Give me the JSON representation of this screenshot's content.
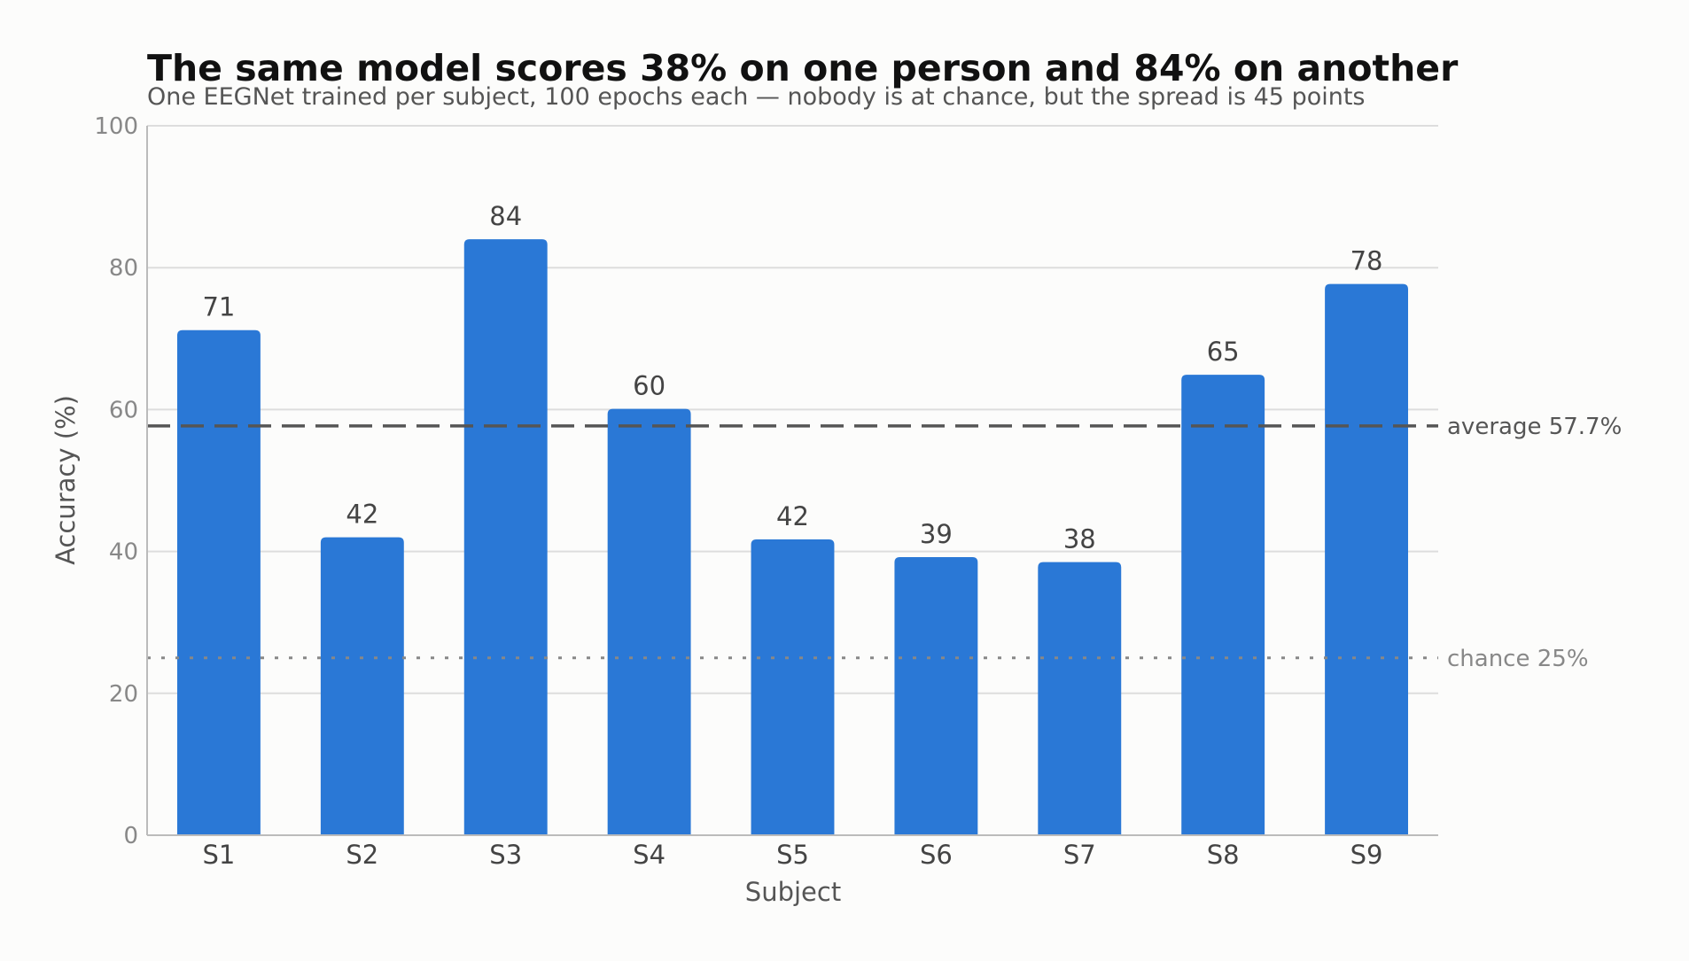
{
  "chart_data": {
    "type": "bar",
    "title": "The same model scores 38% on one person and 84% on another",
    "subtitle": "One EEGNet trained per subject, 100 epochs each — nobody is at chance, but the spread is 45 points",
    "xlabel": "Subject",
    "ylabel": "Accuracy (%)",
    "ylim": [
      0,
      100
    ],
    "yticks": [
      0,
      20,
      40,
      60,
      80,
      100
    ],
    "grid": true,
    "categories": [
      "S1",
      "S2",
      "S3",
      "S4",
      "S5",
      "S6",
      "S7",
      "S8",
      "S9"
    ],
    "values": [
      71.2,
      42.0,
      84.0,
      60.1,
      41.7,
      39.2,
      38.5,
      64.9,
      77.7
    ],
    "data_labels": [
      "71",
      "42",
      "84",
      "60",
      "42",
      "39",
      "38",
      "65",
      "78"
    ],
    "bar_color": "#2a78d6",
    "reference_lines": [
      {
        "value": 57.7,
        "label": "average 57.7%",
        "style": "dashed",
        "color": "#555555"
      },
      {
        "value": 25,
        "label": "chance 25%",
        "style": "dotted",
        "color": "#888888"
      }
    ]
  }
}
